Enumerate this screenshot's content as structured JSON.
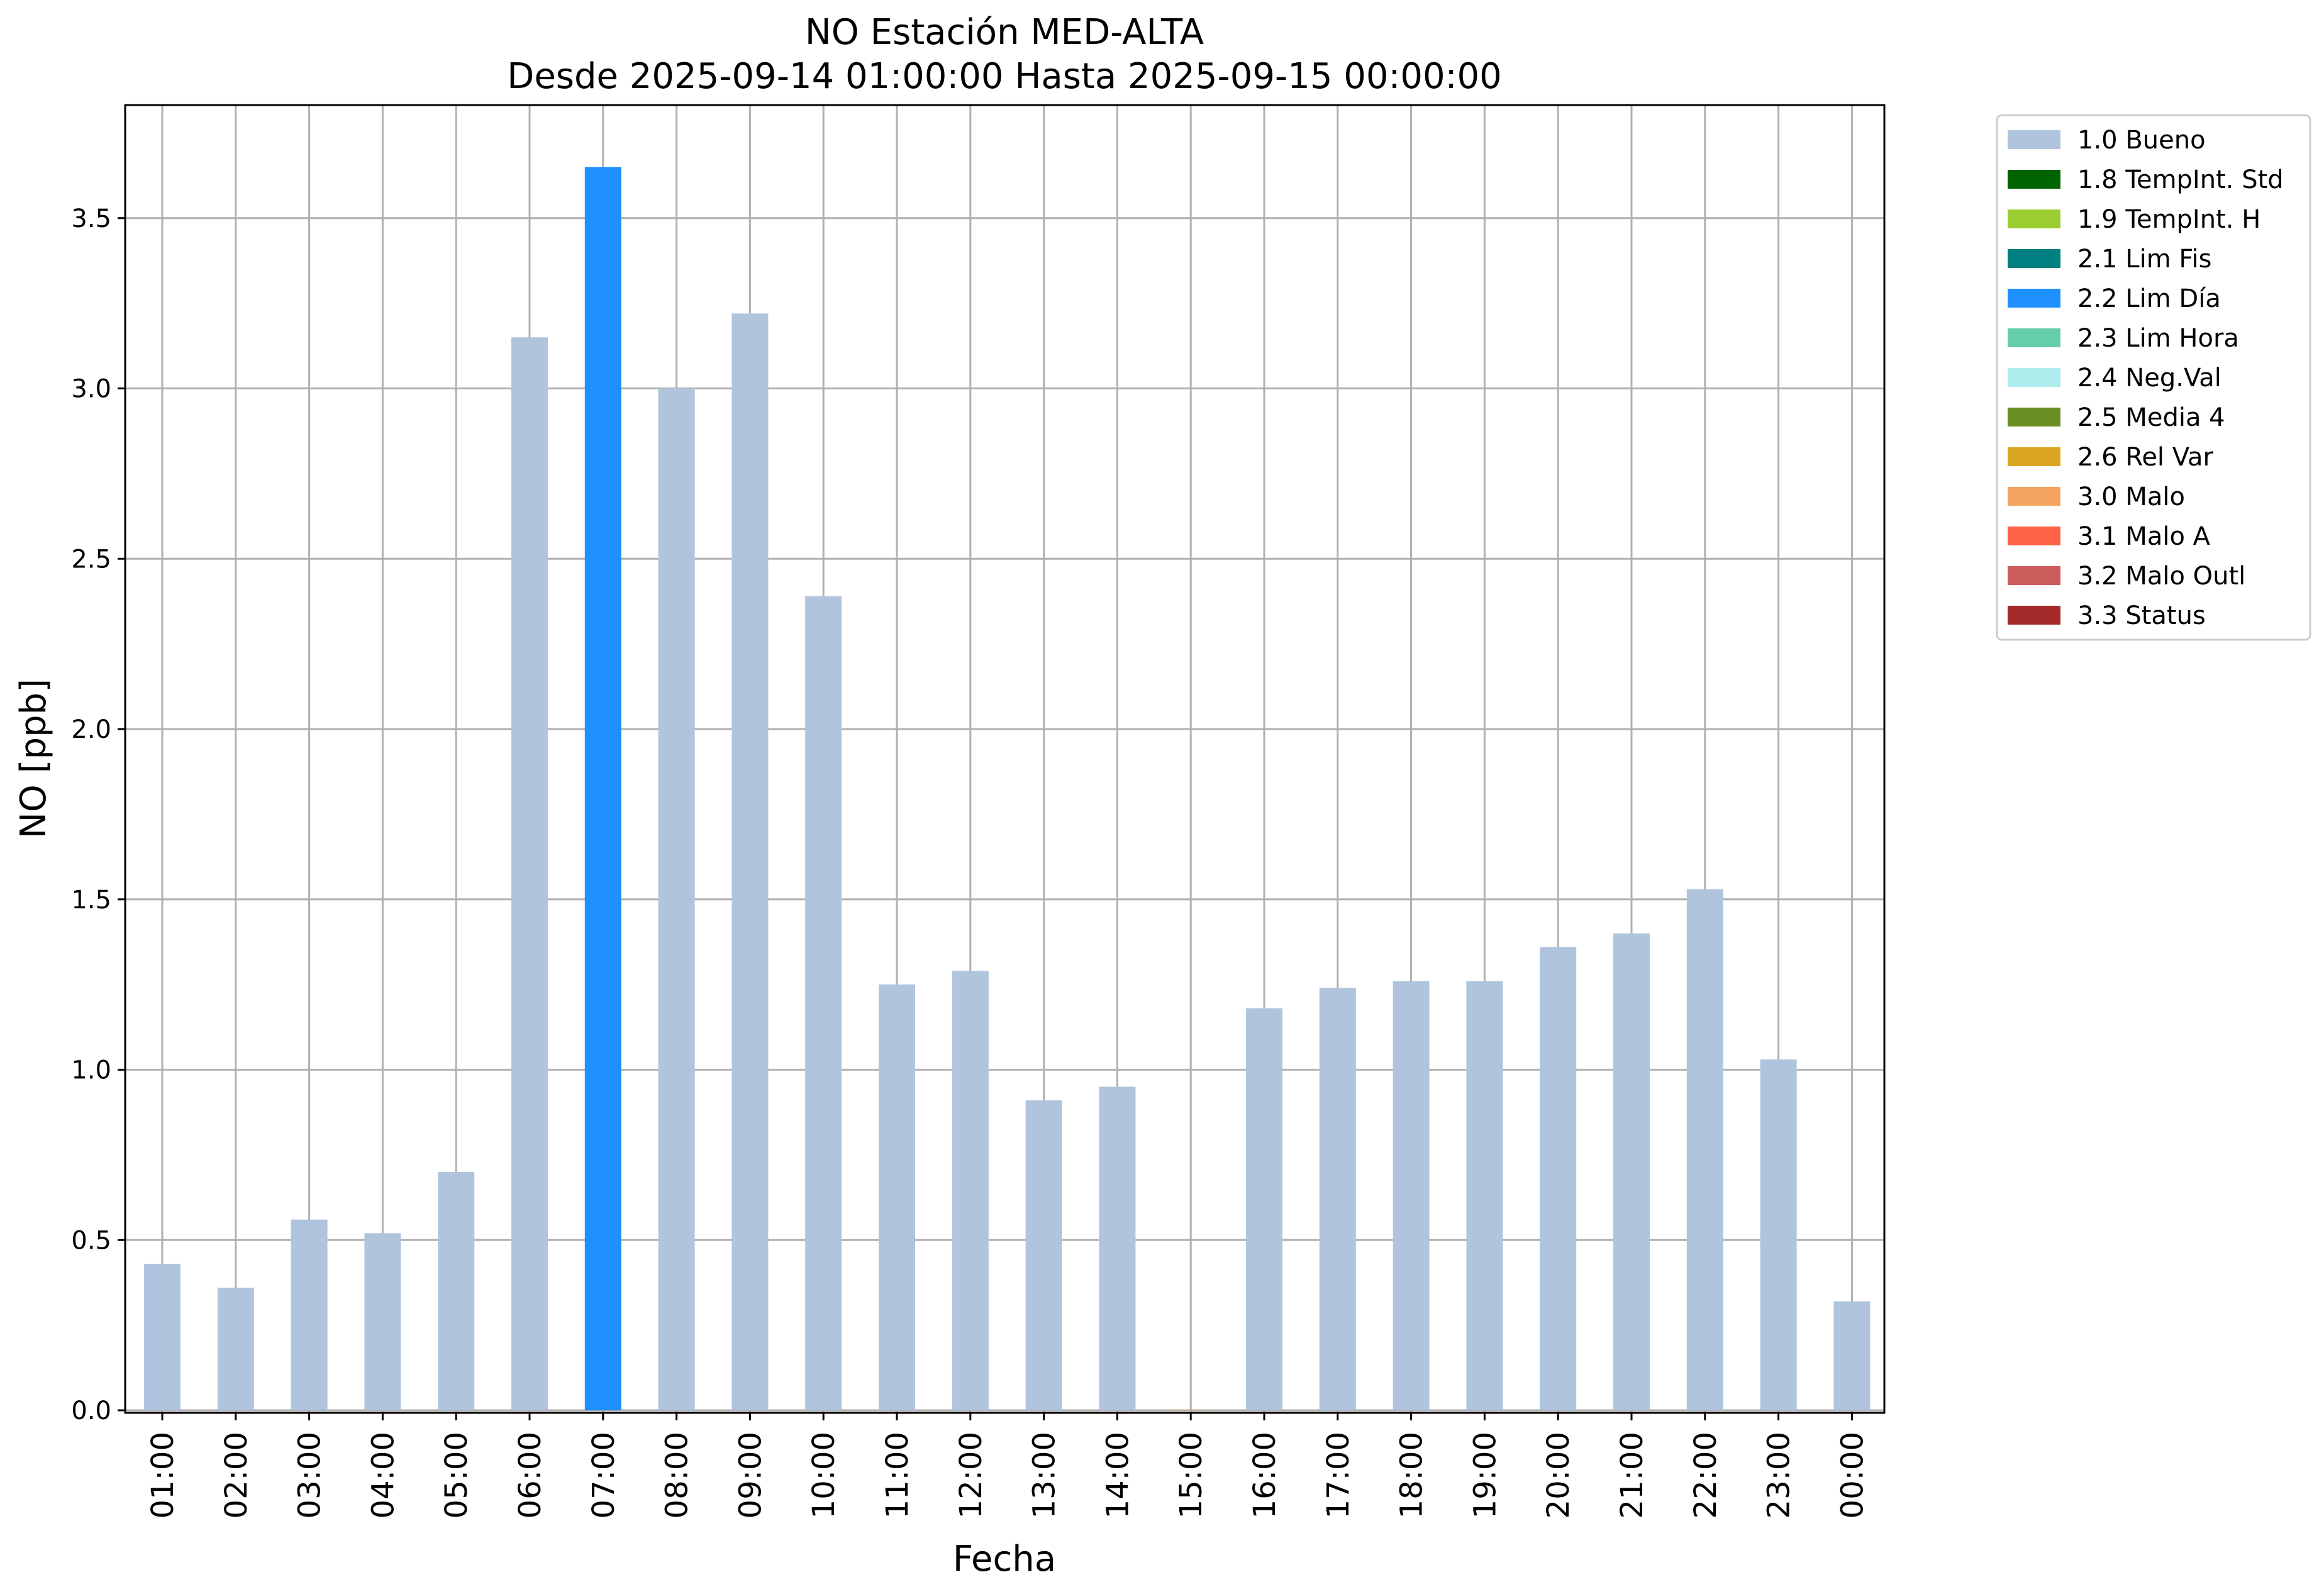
{
  "chart_data": {
    "type": "bar",
    "title": "NO Estación MED-ALTA",
    "subtitle": "Desde 2025-09-14 01:00:00 Hasta 2025-09-15 00:00:00",
    "xlabel": "Fecha",
    "ylabel": "NO [ppb]",
    "ylim": [
      0,
      3.85
    ],
    "yticks": [
      "0.0",
      "0.5",
      "1.0",
      "1.5",
      "2.0",
      "2.5",
      "3.0",
      "3.5"
    ],
    "grid": true,
    "legend_placement": "outside-top-right",
    "categories": [
      "01:00",
      "02:00",
      "03:00",
      "04:00",
      "05:00",
      "06:00",
      "07:00",
      "08:00",
      "09:00",
      "10:00",
      "11:00",
      "12:00",
      "13:00",
      "14:00",
      "15:00",
      "16:00",
      "17:00",
      "18:00",
      "19:00",
      "20:00",
      "21:00",
      "22:00",
      "23:00",
      "00:00"
    ],
    "values": [
      0.43,
      0.36,
      0.56,
      0.52,
      0.7,
      3.15,
      3.65,
      3.0,
      3.22,
      2.39,
      1.25,
      1.29,
      0.91,
      0.95,
      0.0,
      1.18,
      1.24,
      1.26,
      1.26,
      1.36,
      1.4,
      1.53,
      1.03,
      0.32
    ],
    "value_flags": [
      "1.0 Bueno",
      "1.0 Bueno",
      "1.0 Bueno",
      "1.0 Bueno",
      "1.0 Bueno",
      "1.0 Bueno",
      "2.2 Lim Día",
      "1.0 Bueno",
      "1.0 Bueno",
      "1.0 Bueno",
      "1.0 Bueno",
      "1.0 Bueno",
      "1.0 Bueno",
      "1.0 Bueno",
      "3.0 Malo",
      "1.0 Bueno",
      "1.0 Bueno",
      "1.0 Bueno",
      "1.0 Bueno",
      "1.0 Bueno",
      "1.0 Bueno",
      "1.0 Bueno",
      "1.0 Bueno",
      "1.0 Bueno"
    ],
    "legend": [
      {
        "label": "1.0 Bueno",
        "color": "#b0c4de"
      },
      {
        "label": "1.8 TempInt. Std",
        "color": "#006400"
      },
      {
        "label": "1.9 TempInt. H",
        "color": "#9acd32"
      },
      {
        "label": "2.1 Lim Fis",
        "color": "#008080"
      },
      {
        "label": "2.2 Lim Día",
        "color": "#1e90ff"
      },
      {
        "label": "2.3 Lim Hora",
        "color": "#66cdaa"
      },
      {
        "label": "2.4 Neg.Val",
        "color": "#afeeee"
      },
      {
        "label": "2.5 Media 4",
        "color": "#6b8e23"
      },
      {
        "label": "2.6 Rel Var",
        "color": "#daa520"
      },
      {
        "label": "3.0 Malo",
        "color": "#f4a460"
      },
      {
        "label": "3.1 Malo A",
        "color": "#ff6347"
      },
      {
        "label": "3.2 Malo Outl",
        "color": "#cd5c5c"
      },
      {
        "label": "3.3 Status",
        "color": "#a52a2a"
      }
    ]
  }
}
